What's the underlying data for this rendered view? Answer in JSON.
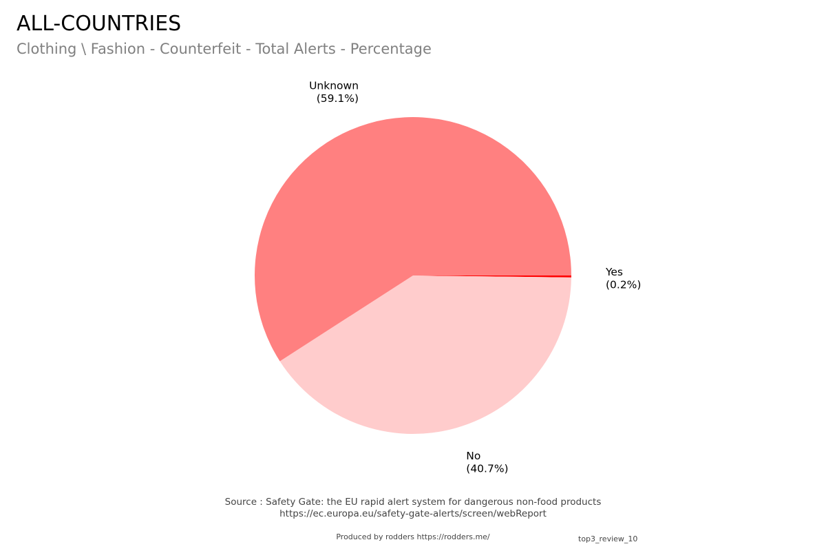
{
  "chart_data": {
    "type": "pie",
    "title": "ALL-COUNTRIES",
    "subtitle": "Clothing \\ Fashion - Counterfeit - Total Alerts - Percentage",
    "slices": [
      {
        "label": "Yes",
        "value": 0.2,
        "value_label": "(0.2%)",
        "color": "#ff0000"
      },
      {
        "label": "No",
        "value": 40.7,
        "value_label": "(40.7%)",
        "color": "#ffcccc"
      },
      {
        "label": "Unknown",
        "value": 59.1,
        "value_label": "(59.1%)",
        "color": "#ff8080"
      }
    ]
  },
  "footer": {
    "source_line1": "Source : Safety Gate: the EU rapid alert system for dangerous non-food products",
    "source_line2": "https://ec.europa.eu/safety-gate-alerts/screen/webReport",
    "credit": "Produced by rodders https://rodders.me/",
    "tag": "top3_review_10"
  }
}
